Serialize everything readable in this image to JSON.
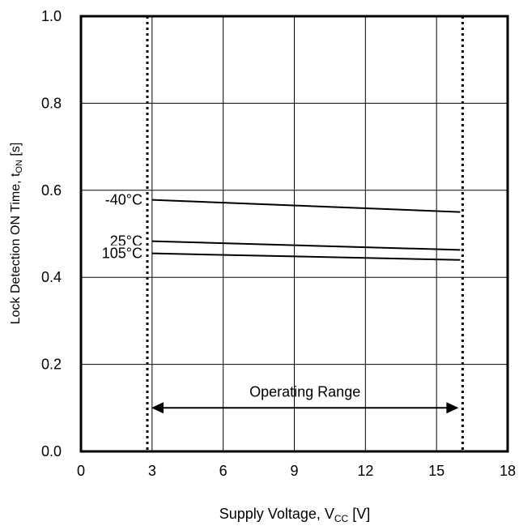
{
  "chart_data": {
    "type": "line",
    "xlabel_main": "Supply Voltage, V",
    "xlabel_sub": "CC",
    "xlabel_unit": " [V]",
    "ylabel_main": "Lock Detection ON Time, t",
    "ylabel_sub": "ON",
    "ylabel_unit": " [s]",
    "xlim": [
      0,
      18
    ],
    "ylim": [
      0,
      1.0
    ],
    "x_ticks": [
      0,
      3,
      6,
      9,
      12,
      15,
      18
    ],
    "x_tick_labels": [
      "0",
      "3",
      "6",
      "9",
      "12",
      "15",
      "18"
    ],
    "y_ticks": [
      0,
      0.2,
      0.4,
      0.6,
      0.8,
      1.0
    ],
    "y_tick_labels": [
      "0.0",
      "0.2",
      "0.4",
      "0.6",
      "0.8",
      "1.0"
    ],
    "grid": true,
    "series": [
      {
        "name": "-40°C",
        "x": [
          3,
          16
        ],
        "y": [
          0.578,
          0.55
        ]
      },
      {
        "name": "25°C",
        "x": [
          3,
          16
        ],
        "y": [
          0.483,
          0.463
        ]
      },
      {
        "name": "105°C",
        "x": [
          3,
          16
        ],
        "y": [
          0.455,
          0.44
        ]
      }
    ],
    "operating_range": {
      "label": "Operating Range",
      "x_min": 2.8,
      "x_max": 16.1,
      "arrow_y": 0.1
    }
  }
}
